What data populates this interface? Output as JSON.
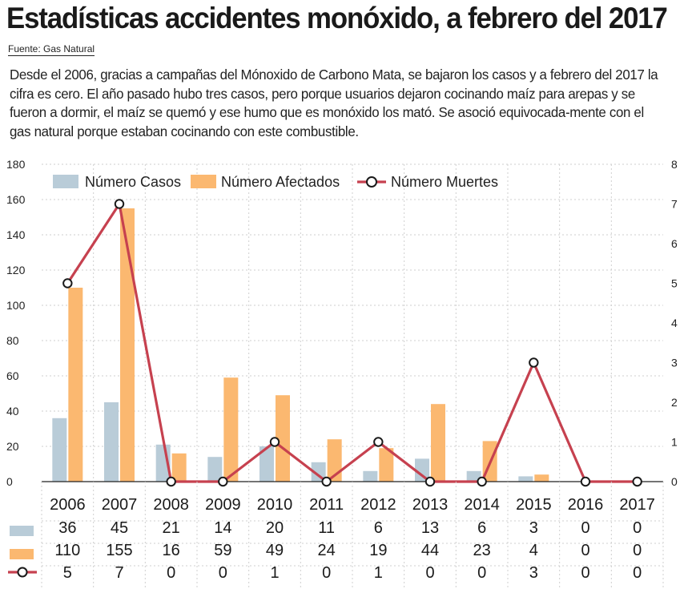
{
  "header": {
    "title": "Estadísticas accidentes monóxido, a febrero del 2017",
    "source": "Fuente: Gas Natural",
    "description": "Desde el 2006, gracias a campañas del Mónoxido de Carbono Mata, se bajaron los casos y a febrero del 2017 la cifra es cero. El año pasado hubo tres casos, pero porque usuarios dejaron cocinando maíz para arepas y se fueron a dormir, el maíz se quemó y ese humo que es monóxido los mató. Se asoció equivocada-mente con el gas natural porque estaban cocinando con este combustible."
  },
  "colors": {
    "casos": "#b9ccd8",
    "afectados": "#fbb870",
    "muertes": "#c6414f",
    "grid": "#cfcfcf"
  },
  "chart_data": {
    "type": "bar",
    "categories": [
      "2006",
      "2007",
      "2008",
      "2009",
      "2010",
      "2011",
      "2012",
      "2013",
      "2014",
      "2015",
      "2016",
      "2017"
    ],
    "series": [
      {
        "name": "Número Casos",
        "type": "bar",
        "axis": "left",
        "color": "#b9ccd8",
        "values": [
          36,
          45,
          21,
          14,
          20,
          11,
          6,
          13,
          6,
          3,
          0,
          0
        ]
      },
      {
        "name": "Número Afectados",
        "type": "bar",
        "axis": "left",
        "color": "#fbb870",
        "values": [
          110,
          155,
          16,
          59,
          49,
          24,
          19,
          44,
          23,
          4,
          0,
          0
        ]
      },
      {
        "name": "Número Muertes",
        "type": "line",
        "axis": "right",
        "color": "#c6414f",
        "values": [
          5,
          7,
          0,
          0,
          1,
          0,
          1,
          0,
          0,
          3,
          0,
          0
        ]
      }
    ],
    "y_left": {
      "min": 0,
      "max": 180,
      "ticks": [
        0,
        20,
        40,
        60,
        80,
        100,
        120,
        140,
        160,
        180
      ]
    },
    "y_right": {
      "min": 0,
      "max": 8,
      "ticks": [
        0,
        1,
        2,
        3,
        4,
        5,
        6,
        7,
        8
      ]
    },
    "grid": true,
    "legend": "top-left",
    "data_table": true
  }
}
